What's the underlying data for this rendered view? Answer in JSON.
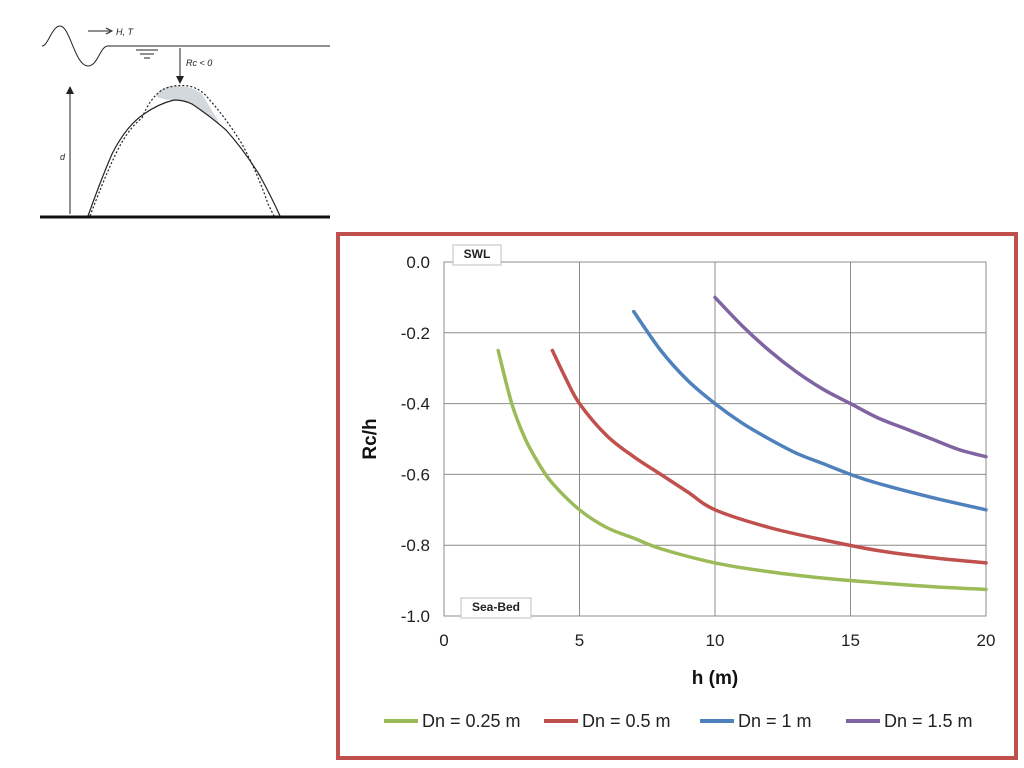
{
  "sketch": {
    "wave_label": "H, T",
    "freeboard_label": "Rc < 0",
    "depth_label": "d"
  },
  "chart_data": {
    "type": "line",
    "title": "",
    "xlabel": "h (m)",
    "ylabel": "Rc/h",
    "xlim": [
      0,
      20
    ],
    "ylim": [
      -1.0,
      0.0
    ],
    "xticks": [
      0,
      5,
      10,
      15,
      20
    ],
    "yticks": [
      0.0,
      -0.2,
      -0.4,
      -0.6,
      -0.8,
      -1.0
    ],
    "xtick_labels": [
      "0",
      "5",
      "10",
      "15",
      "20"
    ],
    "ytick_labels": [
      "0.0",
      "-0.2",
      "-0.4",
      "-0.6",
      "-0.8",
      "-1.0"
    ],
    "grid": true,
    "legend_position": "bottom",
    "annotations": {
      "top": "SWL",
      "bottom": "Sea-Bed"
    },
    "series": [
      {
        "name": "Dn = 0.25 m",
        "color": "#9bbb59",
        "x": [
          2,
          2.5,
          3,
          3.5,
          4,
          5,
          6,
          7,
          8,
          10,
          12,
          14,
          16,
          18,
          20
        ],
        "y": [
          -0.25,
          -0.4,
          -0.5,
          -0.57,
          -0.625,
          -0.7,
          -0.75,
          -0.78,
          -0.81,
          -0.85,
          -0.875,
          -0.893,
          -0.906,
          -0.917,
          -0.925
        ]
      },
      {
        "name": "Dn = 0.5 m",
        "color": "#c0504d",
        "x": [
          4,
          4.5,
          5,
          6,
          7,
          8,
          9,
          10,
          12,
          14,
          16,
          18,
          20
        ],
        "y": [
          -0.25,
          -0.33,
          -0.4,
          -0.49,
          -0.55,
          -0.6,
          -0.65,
          -0.7,
          -0.75,
          -0.785,
          -0.815,
          -0.835,
          -0.85
        ]
      },
      {
        "name": "Dn = 1  m",
        "color": "#4f81bd",
        "x": [
          7,
          8,
          9,
          10,
          11,
          12,
          13,
          14,
          15,
          16,
          18,
          20
        ],
        "y": [
          -0.14,
          -0.25,
          -0.335,
          -0.4,
          -0.455,
          -0.5,
          -0.54,
          -0.57,
          -0.6,
          -0.625,
          -0.665,
          -0.7
        ]
      },
      {
        "name": "Dn = 1.5 m",
        "color": "#8064a2",
        "x": [
          10,
          11,
          12,
          13,
          14,
          15,
          16,
          17,
          18,
          19,
          20
        ],
        "y": [
          -0.1,
          -0.18,
          -0.25,
          -0.31,
          -0.36,
          -0.4,
          -0.44,
          -0.47,
          -0.5,
          -0.53,
          -0.55
        ]
      }
    ]
  }
}
